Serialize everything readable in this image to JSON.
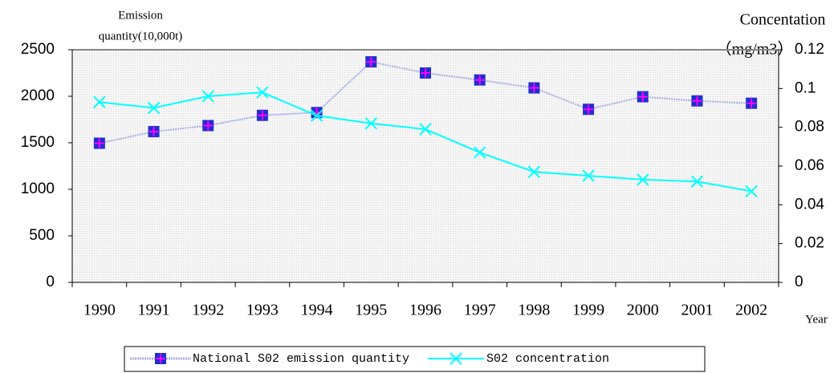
{
  "chart_data": {
    "type": "line",
    "y_label": [
      "Emission",
      "quantity(10,000t)"
    ],
    "y2_label": [
      "Concentation",
      "（mg/m3）"
    ],
    "x_label": "Year",
    "categories": [
      "1990",
      "1991",
      "1992",
      "1993",
      "1994",
      "1995",
      "1996",
      "1997",
      "1998",
      "1999",
      "2000",
      "2001",
      "2002"
    ],
    "series": [
      {
        "name": "National S02 emission quantity",
        "color": "#a9aee6",
        "marker_color": "#1f2fd0",
        "marker_cross_color": "#ff00ff",
        "values": [
          1495,
          1620,
          1685,
          1795,
          1825,
          2370,
          2250,
          2175,
          2090,
          1860,
          1995,
          1950,
          1925
        ]
      },
      {
        "name": "S02 concentration",
        "color": "#00ffff",
        "axis": "y2",
        "values": [
          0.093,
          0.09,
          0.096,
          0.098,
          0.086,
          0.082,
          0.079,
          0.067,
          0.057,
          0.055,
          0.053,
          0.052,
          0.047
        ]
      }
    ],
    "ylim": [
      0,
      2500
    ],
    "yticks": [
      0,
      500,
      1000,
      1500,
      2000,
      2500
    ],
    "y2lim": [
      0,
      0.12
    ],
    "y2ticks": [
      0,
      0.02,
      0.04,
      0.06,
      0.08,
      0.1,
      0.12
    ]
  }
}
